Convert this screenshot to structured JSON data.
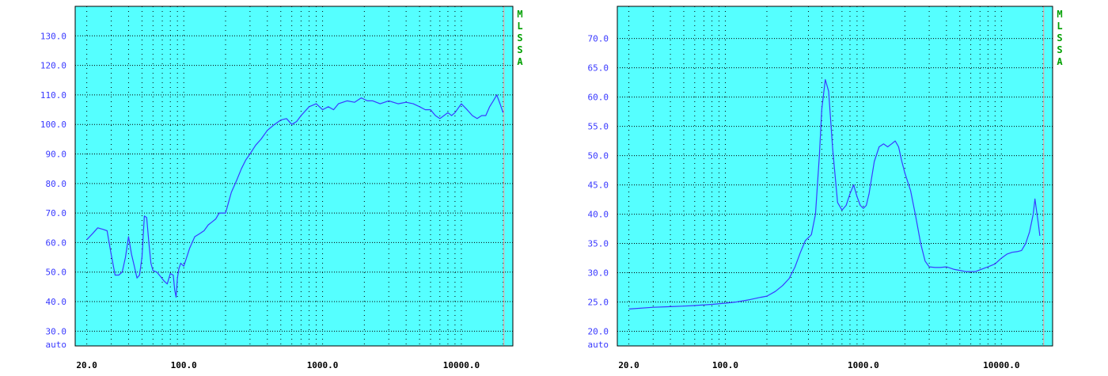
{
  "colors": {
    "background": "#ffffff",
    "plot_bg": "#55ffff",
    "frame": "#000000",
    "trace": "#3a3aff",
    "y_tick_text": "#3a3aff",
    "grid": "#000000",
    "side_text": "#00a000",
    "side_line": "#ff9999"
  },
  "side_letters": [
    "M",
    "L",
    "S",
    "S",
    "A"
  ],
  "chart_data": [
    {
      "type": "line",
      "x_scale": "log",
      "xlim": [
        16.5,
        23500
      ],
      "ylim": [
        25,
        140
      ],
      "grid": true,
      "x_major_ticks": [
        20,
        100,
        1000,
        10000
      ],
      "x_tick_labels": [
        "20.0",
        "100.0",
        "1000.0",
        "10000.0"
      ],
      "y_ticks": [
        30,
        40,
        50,
        60,
        70,
        80,
        90,
        100,
        110,
        120,
        130
      ],
      "y_tick_labels": [
        "30.0",
        "40.0",
        "50.0",
        "60.0",
        "70.0",
        "80.0",
        "90.0",
        "100.0",
        "110.0",
        "120.0",
        "130.0"
      ],
      "y_bottom_label": "auto",
      "series": [
        {
          "x": [
            20,
            22,
            24,
            26,
            28,
            30,
            32,
            34,
            36,
            38,
            40,
            42,
            44,
            46,
            48,
            50,
            52,
            54,
            56,
            58,
            60,
            64,
            68,
            72,
            76,
            80,
            84,
            86,
            88,
            90,
            92,
            95,
            100,
            105,
            110,
            120,
            130,
            140,
            150,
            160,
            170,
            180,
            200,
            220,
            240,
            260,
            280,
            300,
            330,
            360,
            400,
            450,
            500,
            550,
            600,
            650,
            700,
            800,
            900,
            1000,
            1100,
            1200,
            1300,
            1500,
            1700,
            1900,
            2100,
            2300,
            2600,
            3000,
            3500,
            4000,
            4500,
            5000,
            5500,
            6000,
            6500,
            7000,
            7500,
            8000,
            8500,
            9000,
            10000,
            11000,
            12000,
            13000,
            14000,
            15000,
            16000,
            17000,
            18000,
            19000,
            20000
          ],
          "y": [
            61,
            63,
            65,
            64.5,
            64,
            56,
            49,
            49,
            50,
            55,
            62,
            56,
            52,
            48,
            49,
            55,
            69,
            68.5,
            60,
            53,
            50.5,
            50,
            48.5,
            47,
            46,
            49.5,
            49,
            44,
            41.5,
            48,
            51,
            53,
            52,
            55,
            58,
            62,
            63,
            64,
            66,
            67,
            68,
            70,
            70,
            77,
            81,
            85,
            88,
            90,
            93,
            95,
            98,
            100,
            101.5,
            102,
            100,
            101,
            103,
            106,
            107,
            105,
            106,
            105,
            107,
            108,
            107.5,
            109,
            108,
            108,
            107,
            108,
            107,
            107.5,
            107,
            106,
            105,
            105,
            103,
            102,
            103,
            104,
            103,
            104,
            107,
            105,
            103,
            102,
            103,
            103,
            106,
            108,
            110,
            107,
            104
          ]
        }
      ]
    },
    {
      "type": "line",
      "x_scale": "log",
      "xlim": [
        16.5,
        23500
      ],
      "ylim": [
        17.5,
        75.5
      ],
      "grid": true,
      "x_major_ticks": [
        20,
        100,
        1000,
        10000
      ],
      "x_tick_labels": [
        "20.0",
        "100.0",
        "1000.0",
        "10000.0"
      ],
      "y_ticks": [
        20,
        25,
        30,
        35,
        40,
        45,
        50,
        55,
        60,
        65,
        70
      ],
      "y_tick_labels": [
        "20.0",
        "25.0",
        "30.0",
        "35.0",
        "40.0",
        "45.0",
        "50.0",
        "55.0",
        "60.0",
        "65.0",
        "70.0"
      ],
      "y_bottom_label": "auto",
      "series": [
        {
          "x": [
            20,
            30,
            40,
            50,
            60,
            80,
            100,
            120,
            150,
            180,
            200,
            230,
            260,
            290,
            320,
            350,
            380,
            400,
            420,
            450,
            480,
            500,
            530,
            560,
            600,
            650,
            700,
            750,
            800,
            850,
            900,
            950,
            1000,
            1050,
            1100,
            1200,
            1300,
            1400,
            1500,
            1600,
            1700,
            1800,
            1900,
            2000,
            2200,
            2400,
            2600,
            2800,
            3000,
            3300,
            3600,
            4000,
            4500,
            5000,
            5500,
            6000,
            6500,
            7000,
            8000,
            9000,
            10000,
            11000,
            12000,
            13000,
            14000,
            15000,
            16000,
            16500,
            17000,
            17500,
            18000,
            18500,
            19000
          ],
          "y": [
            23.8,
            24.1,
            24.2,
            24.3,
            24.4,
            24.6,
            24.8,
            25,
            25.4,
            25.8,
            26,
            26.8,
            27.8,
            29,
            31,
            33.5,
            35.5,
            36,
            36.5,
            40,
            50,
            58,
            63,
            61,
            51,
            42,
            40.7,
            41.5,
            43.5,
            45,
            43,
            41.5,
            41,
            41.5,
            43.5,
            49,
            51.5,
            52,
            51.5,
            52,
            52.5,
            51.5,
            49,
            47,
            44,
            39.5,
            35,
            32,
            31,
            30.9,
            30.9,
            31,
            30.6,
            30.4,
            30.2,
            30.2,
            30.2,
            30.5,
            31,
            31.5,
            32.5,
            33.2,
            33.5,
            33.6,
            33.8,
            35,
            37,
            38.5,
            40,
            42.6,
            40.5,
            38.5,
            36.3
          ]
        }
      ]
    }
  ]
}
